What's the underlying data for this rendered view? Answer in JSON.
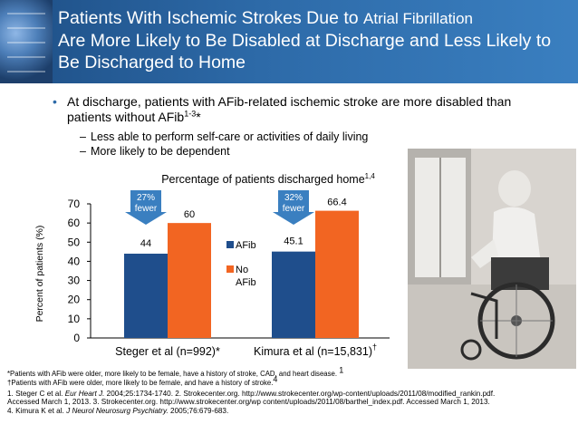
{
  "slide": {
    "title_part1": "Patients With Ischemic Strokes Due to ",
    "title_small": "Atrial Fibrillation",
    "title_part2": "Are More Likely to Be Disabled at Discharge and Less Likely to Be Discharged to Home",
    "bullet_main": "At discharge, patients with AFib-related ischemic stroke are more disabled than patients without AFib",
    "bullet_main_sup": "1-3",
    "bullet_main_tail": "*",
    "sub_bullets": [
      "Less able to perform self-care or activities of daily living",
      "More likely to be dependent"
    ],
    "dash": "–",
    "bullet_symbol": "•"
  },
  "chart_data": {
    "type": "bar",
    "title": "Percentage of patients discharged home",
    "title_sup": "1,4",
    "ylabel": "Percent of patients (%)",
    "ylim": [
      0,
      70
    ],
    "yticks": [
      0,
      10,
      20,
      30,
      40,
      50,
      60,
      70
    ],
    "categories": [
      "Steger et al (n=992)*",
      "Kimura et al (n=15,831)"
    ],
    "category_sup": [
      "",
      "†"
    ],
    "series": [
      {
        "name": "AFib",
        "values": [
          44,
          45.1
        ],
        "labels": [
          "44",
          "45.1"
        ],
        "color": "#1f4e8c"
      },
      {
        "name": "No AFib",
        "values": [
          60,
          66.4
        ],
        "labels": [
          "60",
          "66.4"
        ],
        "color": "#f26522"
      }
    ],
    "legend_placement": "center",
    "annotations": [
      {
        "line1": "27%",
        "line2": "fewer"
      },
      {
        "line1": "32%",
        "line2": "fewer"
      }
    ],
    "annotation_color": "#3a7fc0",
    "grid": false
  },
  "footer": {
    "lines": [
      "*Patients with AFib were older, more likely to be female, have a history of stroke, CAD, and heart disease.",
      "†Patients with AFib were older, more likely to be female, and have a history of stroke.",
      "1. Steger C et al. ",
      "Accessed March 1, 2013. 3. Strokecenter.org. http://www.strokecenter.org/wp content/uploads/2011/08/barthel_index.pdf. Accessed March 1, 2013.",
      "4. Kimura K et al. "
    ],
    "line1_sup": "1",
    "line2_sup": "4",
    "ref1_journal": "Eur Heart J.",
    "ref1_tail": " 2004;25:1734-1740. 2. Strokecenter.org. http://www.strokecenter.org/wp-content/uploads/2011/08/modified_rankin.pdf.",
    "ref4_journal": "J Neurol Neurosurg Psychiatry.",
    "ref4_tail": " 2005;76:679-683."
  }
}
